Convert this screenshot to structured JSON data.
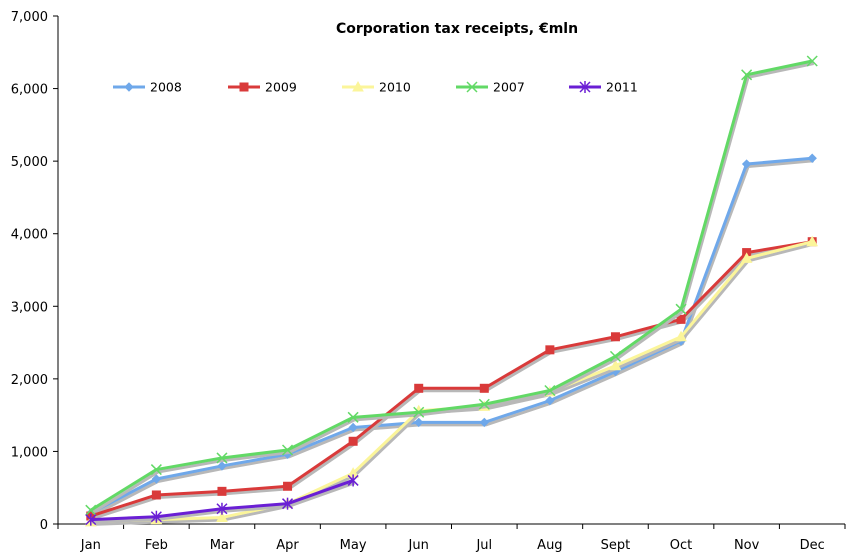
{
  "chart_data": {
    "type": "line",
    "title": "Corporation tax receipts, €mln",
    "xlabel": "",
    "ylabel": "",
    "categories": [
      "Jan",
      "Feb",
      "Mar",
      "Apr",
      "May",
      "Jun",
      "Jul",
      "Aug",
      "Sept",
      "Oct",
      "Nov",
      "Dec"
    ],
    "ylim": [
      0,
      7000
    ],
    "yticks": [
      0,
      1000,
      2000,
      3000,
      4000,
      5000,
      6000,
      7000
    ],
    "ytick_labels": [
      "0",
      "1,000",
      "2,000",
      "3,000",
      "4,000",
      "5,000",
      "6,000",
      "7,000"
    ],
    "grid": false,
    "legend_position": "top-left",
    "series": [
      {
        "name": "2008",
        "color": "#6fa8ea",
        "marker": "diamond",
        "values": [
          150,
          620,
          800,
          960,
          1330,
          1400,
          1400,
          1700,
          2100,
          2520,
          4960,
          5040
        ]
      },
      {
        "name": "2009",
        "color": "#d93a3a",
        "marker": "square",
        "values": [
          110,
          400,
          450,
          520,
          1140,
          1870,
          1870,
          2400,
          2580,
          2820,
          3740,
          3890
        ]
      },
      {
        "name": "2010",
        "color": "#fbf59a",
        "marker": "triangle",
        "values": [
          30,
          60,
          90,
          280,
          700,
          1560,
          1620,
          1820,
          2180,
          2580,
          3660,
          3890
        ]
      },
      {
        "name": "2007",
        "color": "#62d966",
        "marker": "x",
        "values": [
          190,
          750,
          910,
          1020,
          1470,
          1540,
          1650,
          1840,
          2310,
          2960,
          6190,
          6380
        ]
      },
      {
        "name": "2011",
        "color": "#6a1fd4",
        "marker": "star",
        "values": [
          60,
          100,
          210,
          280,
          600,
          null,
          null,
          null,
          null,
          null,
          null,
          null
        ]
      }
    ]
  }
}
